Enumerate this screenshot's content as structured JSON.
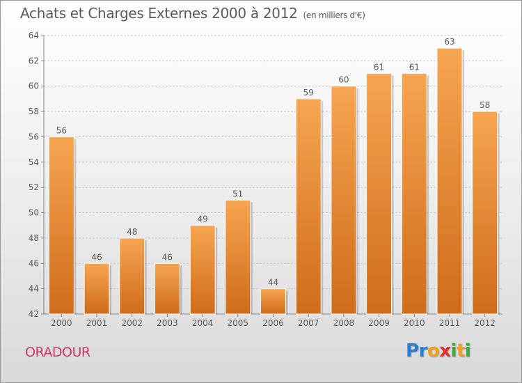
{
  "title": "Achats et Charges Externes 2000 à 2012",
  "subtitle": "(en milliers d'€)",
  "commune": "ORADOUR",
  "logo": {
    "letters": [
      "P",
      "r",
      "o",
      "x",
      "i",
      "t",
      "i"
    ],
    "colors": [
      "#2a7fd4",
      "#2a7fd4",
      "#f0a020",
      "#e03030",
      "#3aa83a",
      "#f0a020",
      "#3aa83a"
    ]
  },
  "colors": {
    "bar_top": "#f6a550",
    "bar_bottom": "#cf6c1c",
    "commune": "#d0336b",
    "text": "#5a5a5a"
  },
  "chart_data": {
    "type": "bar",
    "categories": [
      "2000",
      "2001",
      "2002",
      "2003",
      "2004",
      "2005",
      "2006",
      "2007",
      "2008",
      "2009",
      "2010",
      "2011",
      "2012"
    ],
    "values": [
      56,
      46,
      48,
      46,
      49,
      51,
      44,
      59,
      60,
      61,
      61,
      63,
      58
    ],
    "ylim": [
      42,
      64
    ],
    "yticks": [
      42,
      44,
      46,
      48,
      50,
      52,
      54,
      56,
      58,
      60,
      62,
      64
    ],
    "grid": true,
    "title": "Achats et Charges Externes 2000 à 2012",
    "subtitle": "(en milliers d'€)"
  }
}
